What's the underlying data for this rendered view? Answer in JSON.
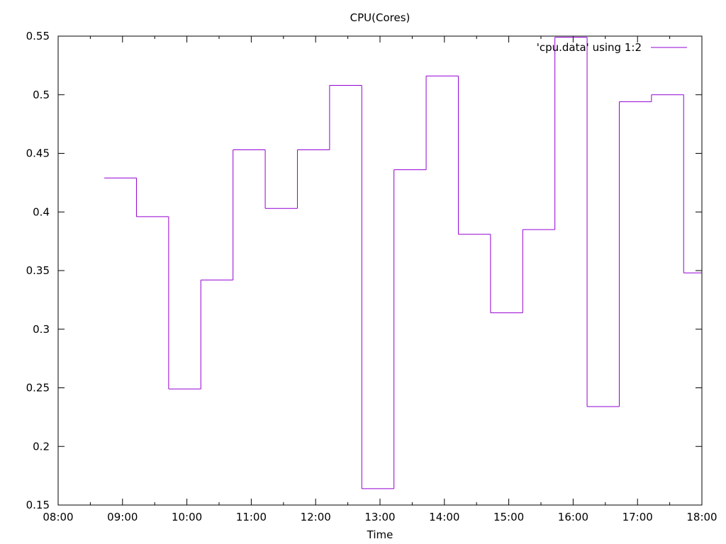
{
  "chart_data": {
    "type": "line",
    "style": "steps",
    "title": "CPU(Cores)",
    "xlabel": "Time",
    "ylabel": "",
    "xlim": [
      "08:00",
      "18:00"
    ],
    "ylim": [
      0.15,
      0.55
    ],
    "x_ticks": [
      "08:00",
      "09:00",
      "10:00",
      "11:00",
      "12:00",
      "13:00",
      "14:00",
      "15:00",
      "16:00",
      "17:00",
      "18:00"
    ],
    "y_ticks": [
      "0.15",
      "0.2",
      "0.25",
      "0.3",
      "0.35",
      "0.4",
      "0.45",
      "0.5",
      "0.55"
    ],
    "grid": false,
    "legend_position": "top-right",
    "series": [
      {
        "name": "'cpu.data' using 1:2",
        "color": "#9400d3",
        "x": [
          "08:43",
          "09:13",
          "09:43",
          "10:13",
          "10:43",
          "11:13",
          "11:43",
          "12:13",
          "12:43",
          "13:13",
          "13:43",
          "14:13",
          "14:43",
          "15:13",
          "15:43",
          "16:13",
          "16:43",
          "17:13",
          "17:43",
          "18:13"
        ],
        "values": [
          0.429,
          0.396,
          0.249,
          0.342,
          0.453,
          0.403,
          0.453,
          0.508,
          0.164,
          0.436,
          0.516,
          0.381,
          0.314,
          0.385,
          0.549,
          0.234,
          0.494,
          0.5,
          0.348,
          0.35
        ]
      }
    ]
  }
}
